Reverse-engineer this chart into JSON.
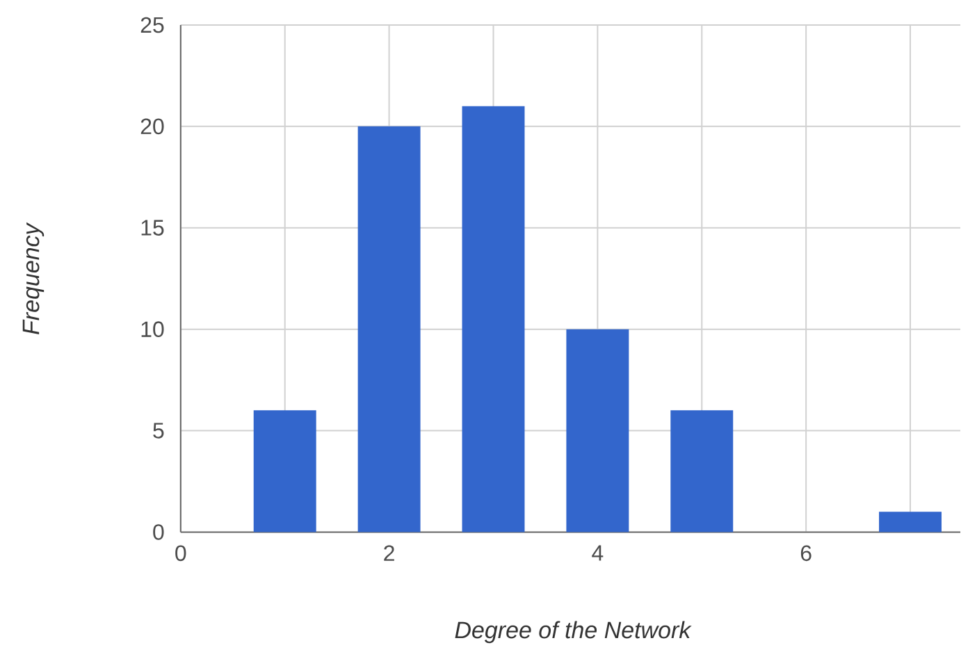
{
  "chart_data": {
    "type": "bar",
    "xlabel": "Degree of the Network",
    "ylabel": "Frequency",
    "x": [
      1,
      2,
      3,
      4,
      5,
      6,
      7
    ],
    "values": [
      6,
      20,
      21,
      10,
      6,
      0,
      1
    ],
    "color": "#3366cc",
    "xlim": [
      0,
      7.48
    ],
    "ylim": [
      0,
      25
    ],
    "xticks": [
      0,
      {
        "value": 1,
        "label": null
      },
      2,
      {
        "value": 3,
        "label": null
      },
      4,
      {
        "value": 5,
        "label": null
      },
      6,
      {
        "value": 7,
        "label": null
      }
    ],
    "yticks": [
      0,
      5,
      10,
      15,
      20,
      25
    ],
    "grid": true
  }
}
